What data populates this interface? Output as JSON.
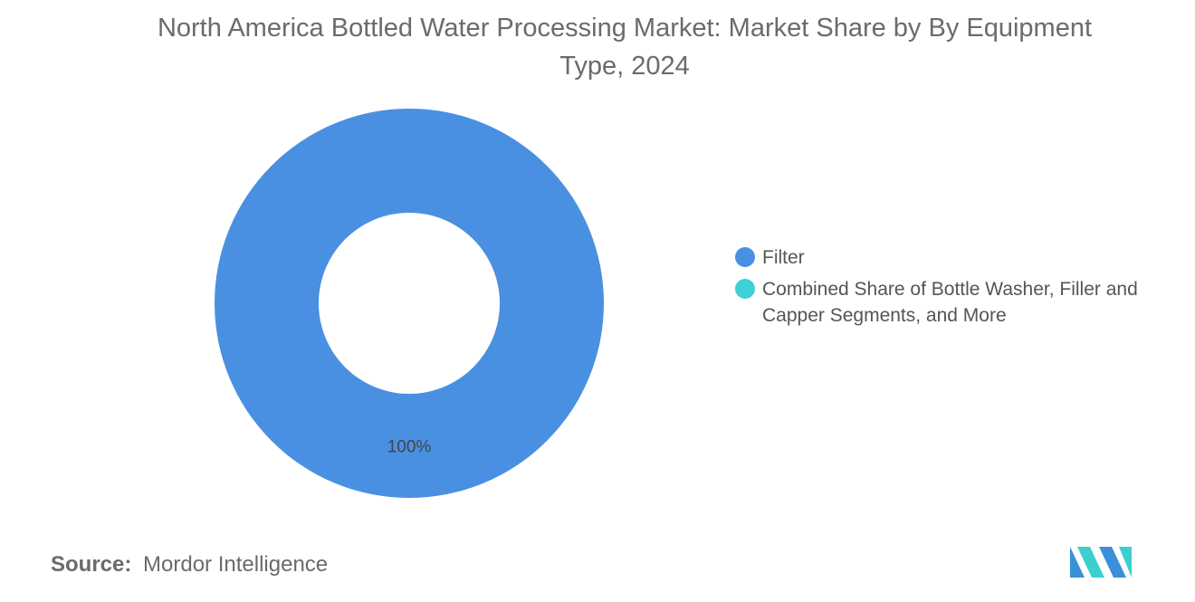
{
  "chart_data": {
    "type": "pie",
    "variant": "donut",
    "title": "North America Bottled Water Processing Market: Market Share by By Equipment Type, 2024",
    "series": [
      {
        "name": "Filter",
        "value": 100,
        "label": "100%",
        "color": "#4a90e2"
      },
      {
        "name": "Combined Share of Bottle Washer, Filler and Capper Segments, and More",
        "value": 0,
        "label": "",
        "color": "#3dd0d6"
      }
    ],
    "legend_placement": "right"
  },
  "source": {
    "key": "Source:",
    "value": "Mordor Intelligence"
  },
  "logo": {
    "name": "mordor-intelligence-logo",
    "colors": [
      "#3a8fd9",
      "#3dcfd0"
    ]
  }
}
